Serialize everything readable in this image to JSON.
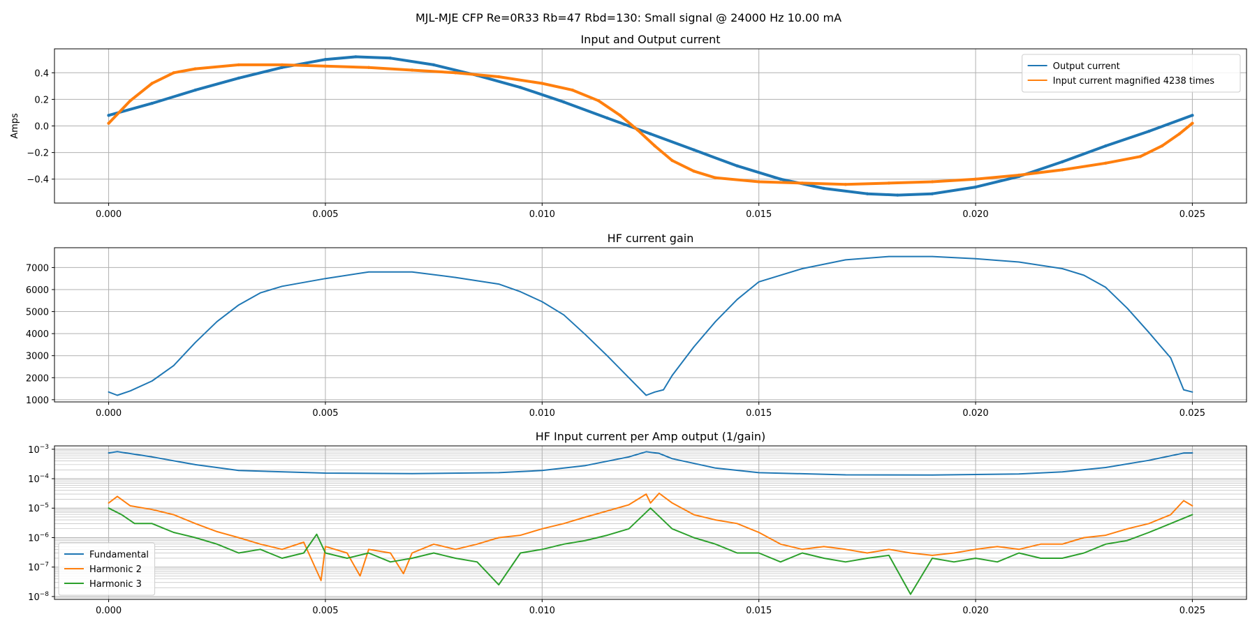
{
  "figure": {
    "suptitle": "MJL-MJE CFP Re=0R33 Rb=47 Rbd=130: Small signal @ 24000 Hz 10.00 mA"
  },
  "colors": {
    "blue": "#1f77b4",
    "orange": "#ff7f0e",
    "green": "#2ca02c",
    "grid": "#b0b0b0"
  },
  "chart_data": [
    {
      "type": "line",
      "title": "Input and Output current",
      "xlabel": "",
      "ylabel": "Amps",
      "xlim": [
        -0.00125,
        0.02625
      ],
      "ylim": [
        -0.58,
        0.58
      ],
      "xticks": [
        0.0,
        0.005,
        0.01,
        0.015,
        0.02,
        0.025
      ],
      "xtick_labels": [
        "0.000",
        "0.005",
        "0.010",
        "0.015",
        "0.020",
        "0.025"
      ],
      "yticks": [
        -0.4,
        -0.2,
        0.0,
        0.2,
        0.4
      ],
      "ytick_labels": [
        "−0.4",
        "−0.2",
        "0.0",
        "0.2",
        "0.4"
      ],
      "grid": true,
      "legend": "top-right",
      "series": [
        {
          "name": "Output current",
          "color": "#1f77b4",
          "marker": "+",
          "x": [
            0,
            0.001,
            0.002,
            0.003,
            0.004,
            0.005,
            0.0057,
            0.0065,
            0.0075,
            0.0085,
            0.0095,
            0.0105,
            0.0115,
            0.0125,
            0.0135,
            0.0145,
            0.0155,
            0.0165,
            0.0175,
            0.0182,
            0.019,
            0.02,
            0.021,
            0.022,
            0.023,
            0.024,
            0.025
          ],
          "y": [
            0.08,
            0.17,
            0.27,
            0.36,
            0.44,
            0.5,
            0.52,
            0.51,
            0.46,
            0.38,
            0.29,
            0.18,
            0.06,
            -0.06,
            -0.18,
            -0.3,
            -0.4,
            -0.47,
            -0.51,
            -0.52,
            -0.51,
            -0.46,
            -0.38,
            -0.27,
            -0.15,
            -0.04,
            0.08
          ]
        },
        {
          "name": "Input current magnified 4238 times",
          "color": "#ff7f0e",
          "marker": "+",
          "x": [
            0,
            0.0005,
            0.001,
            0.0015,
            0.002,
            0.003,
            0.004,
            0.005,
            0.006,
            0.007,
            0.008,
            0.009,
            0.01,
            0.0107,
            0.0113,
            0.0118,
            0.0122,
            0.0126,
            0.013,
            0.0135,
            0.014,
            0.015,
            0.016,
            0.017,
            0.018,
            0.019,
            0.02,
            0.021,
            0.022,
            0.023,
            0.0238,
            0.0243,
            0.0247,
            0.025
          ],
          "y": [
            0.02,
            0.19,
            0.32,
            0.4,
            0.43,
            0.46,
            0.46,
            0.45,
            0.44,
            0.42,
            0.4,
            0.37,
            0.32,
            0.27,
            0.19,
            0.08,
            -0.03,
            -0.15,
            -0.26,
            -0.34,
            -0.39,
            -0.42,
            -0.43,
            -0.44,
            -0.43,
            -0.42,
            -0.4,
            -0.37,
            -0.33,
            -0.28,
            -0.23,
            -0.15,
            -0.06,
            0.02
          ]
        }
      ]
    },
    {
      "type": "line",
      "title": "HF current gain",
      "xlabel": "",
      "ylabel": "",
      "xlim": [
        -0.00125,
        0.02625
      ],
      "ylim": [
        900,
        7900
      ],
      "xticks": [
        0.0,
        0.005,
        0.01,
        0.015,
        0.02,
        0.025
      ],
      "xtick_labels": [
        "0.000",
        "0.005",
        "0.010",
        "0.015",
        "0.020",
        "0.025"
      ],
      "yticks": [
        1000,
        2000,
        3000,
        4000,
        5000,
        6000,
        7000
      ],
      "ytick_labels": [
        "1000",
        "2000",
        "3000",
        "4000",
        "5000",
        "6000",
        "7000"
      ],
      "grid": true,
      "series": [
        {
          "color": "#1f77b4",
          "x": [
            0,
            0.0002,
            0.0005,
            0.001,
            0.0015,
            0.002,
            0.0025,
            0.003,
            0.0035,
            0.004,
            0.005,
            0.006,
            0.007,
            0.008,
            0.009,
            0.0095,
            0.01,
            0.0105,
            0.011,
            0.0115,
            0.012,
            0.0124,
            0.0126,
            0.0128,
            0.013,
            0.0135,
            0.014,
            0.0145,
            0.015,
            0.016,
            0.017,
            0.018,
            0.019,
            0.02,
            0.021,
            0.022,
            0.0225,
            0.023,
            0.0235,
            0.024,
            0.0245,
            0.0248,
            0.025
          ],
          "y": [
            1350,
            1200,
            1400,
            1850,
            2550,
            3600,
            4550,
            5300,
            5850,
            6150,
            6500,
            6800,
            6800,
            6550,
            6250,
            5900,
            5450,
            4850,
            3950,
            3000,
            2000,
            1200,
            1350,
            1450,
            2100,
            3400,
            4550,
            5550,
            6350,
            6950,
            7350,
            7500,
            7500,
            7400,
            7250,
            6950,
            6650,
            6100,
            5150,
            4050,
            2900,
            1450,
            1350
          ]
        }
      ]
    },
    {
      "type": "line",
      "title": "HF Input current per Amp output (1/gain)",
      "xlabel": "",
      "ylabel": "",
      "yscale": "log",
      "xlim": [
        -0.00125,
        0.02625
      ],
      "ylim": [
        8e-09,
        0.0013
      ],
      "xticks": [
        0.0,
        0.005,
        0.01,
        0.015,
        0.02,
        0.025
      ],
      "xtick_labels": [
        "0.000",
        "0.005",
        "0.010",
        "0.015",
        "0.020",
        "0.025"
      ],
      "yticks": [
        1e-08,
        1e-07,
        1e-06,
        1e-05,
        0.0001,
        0.001
      ],
      "ytick_labels": [
        "10−8",
        "10−7",
        "10−6",
        "10−5",
        "10−4",
        "10−3"
      ],
      "grid": true,
      "legend": "bottom-left",
      "series": [
        {
          "name": "Fundamental",
          "color": "#1f77b4",
          "x": [
            0,
            0.0002,
            0.001,
            0.002,
            0.003,
            0.005,
            0.007,
            0.009,
            0.01,
            0.011,
            0.012,
            0.0124,
            0.0127,
            0.013,
            0.014,
            0.015,
            0.017,
            0.019,
            0.021,
            0.022,
            0.023,
            0.024,
            0.0248,
            0.025
          ],
          "y": [
            0.00075,
            0.00083,
            0.00055,
            0.0003,
            0.00019,
            0.000155,
            0.000148,
            0.00016,
            0.00019,
            0.00028,
            0.00055,
            0.00082,
            0.00072,
            0.00048,
            0.00023,
            0.00016,
            0.000135,
            0.000133,
            0.000145,
            0.00017,
            0.00024,
            0.00042,
            0.00074,
            0.00075
          ]
        },
        {
          "name": "Harmonic 2",
          "color": "#ff7f0e",
          "x": [
            0,
            0.0002,
            0.0005,
            0.001,
            0.0015,
            0.002,
            0.0025,
            0.003,
            0.0035,
            0.004,
            0.0045,
            0.0049,
            0.005,
            0.0055,
            0.0058,
            0.006,
            0.0065,
            0.0068,
            0.007,
            0.0075,
            0.008,
            0.0085,
            0.009,
            0.0095,
            0.01,
            0.0105,
            0.011,
            0.0115,
            0.012,
            0.0124,
            0.0125,
            0.0127,
            0.013,
            0.0135,
            0.014,
            0.0145,
            0.015,
            0.0155,
            0.016,
            0.0165,
            0.017,
            0.0175,
            0.018,
            0.0185,
            0.019,
            0.0195,
            0.02,
            0.0205,
            0.021,
            0.0215,
            0.022,
            0.0225,
            0.023,
            0.0235,
            0.024,
            0.0245,
            0.0248,
            0.025
          ],
          "y": [
            1.5e-05,
            2.5e-05,
            1.2e-05,
            9e-06,
            6e-06,
            3e-06,
            1.6e-06,
            1e-06,
            6e-07,
            4e-07,
            7e-07,
            3.5e-08,
            5e-07,
            3e-07,
            5e-08,
            4e-07,
            3e-07,
            6e-08,
            3e-07,
            6e-07,
            4e-07,
            6e-07,
            1e-06,
            1.2e-06,
            2e-06,
            3e-06,
            5e-06,
            8e-06,
            1.3e-05,
            3e-05,
            1.5e-05,
            3.2e-05,
            1.5e-05,
            6e-06,
            4e-06,
            3e-06,
            1.5e-06,
            6e-07,
            4e-07,
            5e-07,
            4e-07,
            3e-07,
            4e-07,
            3e-07,
            2.5e-07,
            3e-07,
            4e-07,
            5e-07,
            4e-07,
            6e-07,
            6e-07,
            1e-06,
            1.2e-06,
            2e-06,
            3e-06,
            6e-06,
            1.8e-05,
            1.2e-05
          ]
        },
        {
          "name": "Harmonic 3",
          "color": "#2ca02c",
          "x": [
            0,
            0.0003,
            0.0006,
            0.001,
            0.0015,
            0.002,
            0.0025,
            0.003,
            0.0035,
            0.004,
            0.0045,
            0.0048,
            0.005,
            0.0055,
            0.006,
            0.0065,
            0.007,
            0.0075,
            0.008,
            0.0085,
            0.009,
            0.0095,
            0.01,
            0.0105,
            0.011,
            0.0115,
            0.012,
            0.0125,
            0.013,
            0.0135,
            0.014,
            0.0145,
            0.015,
            0.0155,
            0.016,
            0.0165,
            0.017,
            0.0175,
            0.018,
            0.0185,
            0.019,
            0.0195,
            0.02,
            0.0205,
            0.021,
            0.0215,
            0.022,
            0.0225,
            0.023,
            0.0235,
            0.024,
            0.0245,
            0.025
          ],
          "y": [
            1e-05,
            6e-06,
            3e-06,
            3e-06,
            1.5e-06,
            1e-06,
            6e-07,
            3e-07,
            4e-07,
            2e-07,
            3e-07,
            1.3e-06,
            3e-07,
            2e-07,
            3e-07,
            1.5e-07,
            2e-07,
            3e-07,
            2e-07,
            1.5e-07,
            2.5e-08,
            3e-07,
            4e-07,
            6e-07,
            8e-07,
            1.2e-06,
            2e-06,
            1e-05,
            2e-06,
            1e-06,
            6e-07,
            3e-07,
            3e-07,
            1.5e-07,
            3e-07,
            2e-07,
            1.5e-07,
            2e-07,
            2.5e-07,
            1.2e-08,
            2e-07,
            1.5e-07,
            2e-07,
            1.5e-07,
            3e-07,
            2e-07,
            2e-07,
            3e-07,
            6e-07,
            8e-07,
            1.5e-06,
            3e-06,
            6e-06
          ]
        }
      ]
    }
  ]
}
